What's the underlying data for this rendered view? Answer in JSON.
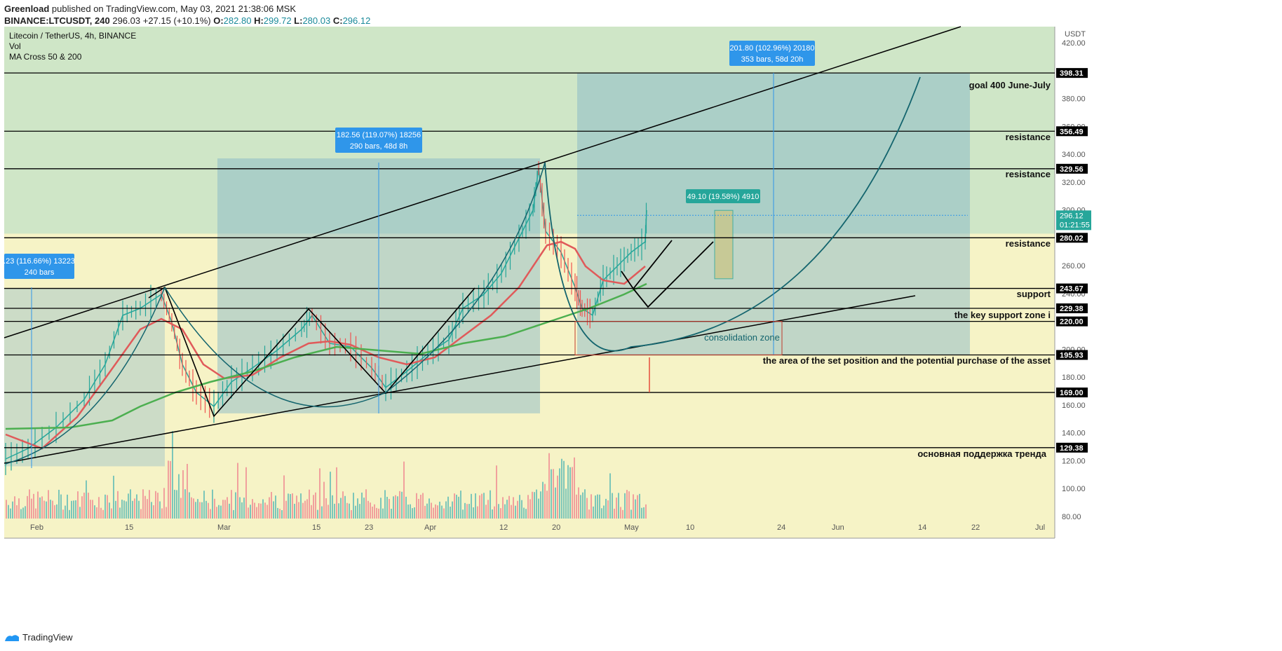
{
  "header": {
    "publisher": "Greenload",
    "published_text": "published on TradingView.com, May 03, 2021 21:38:06 MSK",
    "symbol": "BINANCE:LTCUSDT, 240",
    "last": "296.03",
    "change": "+27.15 (+10.1%)",
    "o_label": "O:",
    "o": "282.80",
    "h_label": "H:",
    "h": "299.72",
    "l_label": "L:",
    "l": "280.03",
    "c_label": "C:",
    "c": "296.12"
  },
  "legend": {
    "title": "Litecoin / TetherUS, 4h, BINANCE",
    "vol": "Vol",
    "ma": "MA Cross 50 & 200"
  },
  "axis": {
    "currency": "USDT",
    "y_ticks": [
      "420.00",
      "400.00",
      "380.00",
      "360.00",
      "340.00",
      "320.00",
      "300.00",
      "280.00",
      "260.00",
      "240.00",
      "220.00",
      "200.00",
      "180.00",
      "160.00",
      "140.00",
      "120.00",
      "100.00",
      "80.00"
    ],
    "x_ticks": [
      "Feb",
      "15",
      "Mar",
      "15",
      "23",
      "Apr",
      "12",
      "20",
      "May",
      "10",
      "24",
      "Jun",
      "14",
      "22",
      "Jul"
    ]
  },
  "price_labels": [
    "398.31",
    "356.49",
    "329.56",
    "280.02",
    "243.67",
    "229.38",
    "220.00",
    "195.93",
    "169.00",
    "129.38"
  ],
  "current_price": {
    "value": "296.12",
    "countdown": "01:21:55"
  },
  "annotations": [
    "goal 400 June-July",
    "resistance",
    "resistance",
    "resistance",
    "support",
    "the key support zone i",
    "the area of the set position and the potential purchase of the asset",
    "основная поддержка тренда",
    "consolidation zone"
  ],
  "measures": [
    {
      "line1": ".23 (116.66%) 13223",
      "line2": "240 bars"
    },
    {
      "line1": "182.56 (119.07%) 18256",
      "line2": "290 bars, 48d 8h"
    },
    {
      "line1": "201.80 (102.96%) 20180",
      "line2": "353 bars, 58d 20h"
    },
    {
      "line1": "49.10 (19.58%) 4910",
      "line2": ""
    }
  ],
  "footer": {
    "brand": "TradingView"
  },
  "colors": {
    "bg_green": "#cfe6c7",
    "bg_yellow": "#f6f3c6",
    "measure_box": "#2f96ea",
    "measure_green": "#26a69a",
    "ma50": "#e05a5a",
    "ma200": "#4caf50",
    "up": "#26a69a",
    "down": "#ef5350"
  },
  "chart_data": {
    "type": "line",
    "title": "Litecoin / TetherUS, 4h, BINANCE",
    "x": [
      "Feb",
      "15",
      "Mar",
      "15",
      "23",
      "Apr",
      "12",
      "20",
      "May"
    ],
    "series": [
      {
        "name": "Litecoin / TetherUS",
        "values": [
          130,
          230,
          160,
          225,
          170,
          240,
          330,
          195,
          296
        ]
      }
    ],
    "horizontal_levels": [
      398.31,
      356.49,
      329.56,
      280.02,
      243.67,
      229.38,
      220.0,
      195.93,
      169.0,
      129.38
    ],
    "ylim": [
      80,
      425
    ]
  }
}
